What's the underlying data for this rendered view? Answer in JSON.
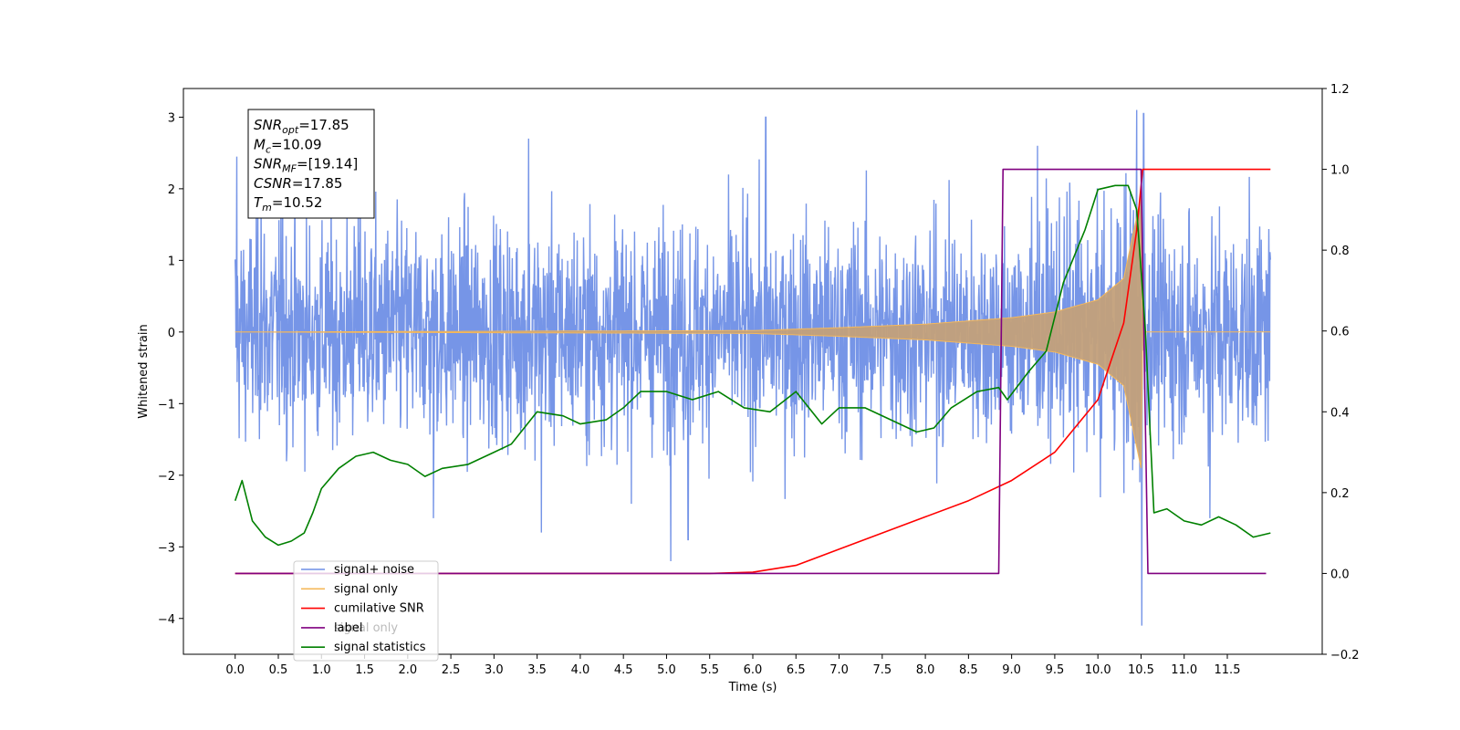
{
  "colors": {
    "signal_noise": "#6f8fe6",
    "signal_only": "#f5b85a",
    "signal_band": "#c3a07a",
    "cumulative_snr": "#ff0000",
    "label": "#800080",
    "signal_statistics": "#008000"
  },
  "chart_data": {
    "type": "line",
    "xlabel": "Time (s)",
    "ylabel": "Whitened strain",
    "xlim": [
      -0.6,
      12.6
    ],
    "ylim_left": [
      -4.5,
      3.4
    ],
    "ylim_right": [
      -0.2,
      1.2
    ],
    "x_ticks": [
      "0.0",
      "0.5",
      "1.0",
      "1.5",
      "2.0",
      "2.5",
      "3.0",
      "3.5",
      "4.0",
      "4.5",
      "5.0",
      "5.5",
      "6.0",
      "6.5",
      "7.0",
      "7.5",
      "8.0",
      "8.5",
      "9.0",
      "9.5",
      "10.0",
      "10.5",
      "11.0",
      "11.5"
    ],
    "y_ticks_left": [
      "3",
      "2",
      "1",
      "0",
      "−1",
      "−2",
      "−3",
      "−4"
    ],
    "y_ticks_right": [
      "1.2",
      "1.0",
      "0.8",
      "0.6",
      "0.4",
      "0.2",
      "0.0",
      "−0.2"
    ],
    "legend": {
      "position": "lower left",
      "entries": [
        "signal+ noise",
        "signal only",
        "cumilative SNR",
        "label",
        "signal statistics"
      ],
      "ghost_text": "signal only"
    },
    "info_box": {
      "lines": [
        {
          "name": "SNR",
          "sub": "opt",
          "value": "=17.85"
        },
        {
          "name": "M",
          "sub": "c",
          "value": "=10.09"
        },
        {
          "name": "SNR",
          "sub": "MF",
          "value": "=[19.14]"
        },
        {
          "name": "CSNR",
          "sub": "",
          "value": "=17.85"
        },
        {
          "name": "T",
          "sub": "m",
          "value": "=10.52"
        }
      ]
    },
    "series": [
      {
        "name": "signal+ noise",
        "axis": "left",
        "band": [
          0.0,
          12.0
        ],
        "typical_range": [
          -1.6,
          1.6
        ],
        "spikes": [
          {
            "x": 0.02,
            "y": 2.45
          },
          {
            "x": 0.3,
            "y": 2.0
          },
          {
            "x": 0.55,
            "y": 2.1
          },
          {
            "x": 1.45,
            "y": 2.5
          },
          {
            "x": 3.4,
            "y": 2.7
          },
          {
            "x": 5.05,
            "y": -3.2
          },
          {
            "x": 5.25,
            "y": -2.9
          },
          {
            "x": 6.15,
            "y": 3.0
          },
          {
            "x": 9.3,
            "y": 2.6
          },
          {
            "x": 10.45,
            "y": 3.1
          },
          {
            "x": 10.51,
            "y": -4.1
          },
          {
            "x": 10.53,
            "y": 3.05
          },
          {
            "x": 11.3,
            "y": -2.6
          },
          {
            "x": 3.55,
            "y": -2.8
          },
          {
            "x": 2.3,
            "y": -2.6
          }
        ]
      },
      {
        "name": "signal only",
        "axis": "left",
        "envelope": [
          {
            "x": 0.0,
            "y": 0.0
          },
          {
            "x": 6.0,
            "y": 0.02
          },
          {
            "x": 7.0,
            "y": 0.06
          },
          {
            "x": 8.0,
            "y": 0.11
          },
          {
            "x": 9.0,
            "y": 0.2
          },
          {
            "x": 9.5,
            "y": 0.28
          },
          {
            "x": 10.0,
            "y": 0.45
          },
          {
            "x": 10.3,
            "y": 0.75
          },
          {
            "x": 10.5,
            "y": 1.9
          },
          {
            "x": 10.52,
            "y": 0.0
          },
          {
            "x": 12.0,
            "y": 0.0
          }
        ]
      },
      {
        "name": "cumilative SNR",
        "axis": "right",
        "points": [
          {
            "x": 0.0,
            "y": 0.0
          },
          {
            "x": 5.5,
            "y": 0.0
          },
          {
            "x": 6.0,
            "y": 0.003
          },
          {
            "x": 6.5,
            "y": 0.02
          },
          {
            "x": 7.0,
            "y": 0.06
          },
          {
            "x": 7.5,
            "y": 0.1
          },
          {
            "x": 8.0,
            "y": 0.14
          },
          {
            "x": 8.5,
            "y": 0.18
          },
          {
            "x": 9.0,
            "y": 0.23
          },
          {
            "x": 9.5,
            "y": 0.3
          },
          {
            "x": 10.0,
            "y": 0.43
          },
          {
            "x": 10.3,
            "y": 0.62
          },
          {
            "x": 10.45,
            "y": 0.85
          },
          {
            "x": 10.52,
            "y": 1.0
          },
          {
            "x": 12.0,
            "y": 1.0
          }
        ]
      },
      {
        "name": "label",
        "axis": "right",
        "points": [
          {
            "x": 0.0,
            "y": 0.0
          },
          {
            "x": 8.85,
            "y": 0.0
          },
          {
            "x": 8.9,
            "y": 1.0
          },
          {
            "x": 10.5,
            "y": 1.0
          },
          {
            "x": 10.58,
            "y": 0.0
          },
          {
            "x": 11.95,
            "y": 0.0
          }
        ]
      },
      {
        "name": "signal statistics",
        "axis": "right",
        "points": [
          {
            "x": 0.0,
            "y": 0.18
          },
          {
            "x": 0.08,
            "y": 0.23
          },
          {
            "x": 0.2,
            "y": 0.13
          },
          {
            "x": 0.35,
            "y": 0.09
          },
          {
            "x": 0.5,
            "y": 0.07
          },
          {
            "x": 0.65,
            "y": 0.08
          },
          {
            "x": 0.8,
            "y": 0.1
          },
          {
            "x": 0.9,
            "y": 0.15
          },
          {
            "x": 1.0,
            "y": 0.21
          },
          {
            "x": 1.2,
            "y": 0.26
          },
          {
            "x": 1.4,
            "y": 0.29
          },
          {
            "x": 1.6,
            "y": 0.3
          },
          {
            "x": 1.8,
            "y": 0.28
          },
          {
            "x": 2.0,
            "y": 0.27
          },
          {
            "x": 2.2,
            "y": 0.24
          },
          {
            "x": 2.4,
            "y": 0.26
          },
          {
            "x": 2.7,
            "y": 0.27
          },
          {
            "x": 3.0,
            "y": 0.3
          },
          {
            "x": 3.2,
            "y": 0.32
          },
          {
            "x": 3.5,
            "y": 0.4
          },
          {
            "x": 3.8,
            "y": 0.39
          },
          {
            "x": 4.0,
            "y": 0.37
          },
          {
            "x": 4.3,
            "y": 0.38
          },
          {
            "x": 4.5,
            "y": 0.41
          },
          {
            "x": 4.7,
            "y": 0.45
          },
          {
            "x": 5.0,
            "y": 0.45
          },
          {
            "x": 5.3,
            "y": 0.43
          },
          {
            "x": 5.6,
            "y": 0.45
          },
          {
            "x": 5.9,
            "y": 0.41
          },
          {
            "x": 6.2,
            "y": 0.4
          },
          {
            "x": 6.5,
            "y": 0.45
          },
          {
            "x": 6.8,
            "y": 0.37
          },
          {
            "x": 7.0,
            "y": 0.41
          },
          {
            "x": 7.3,
            "y": 0.41
          },
          {
            "x": 7.6,
            "y": 0.38
          },
          {
            "x": 7.9,
            "y": 0.35
          },
          {
            "x": 8.1,
            "y": 0.36
          },
          {
            "x": 8.3,
            "y": 0.41
          },
          {
            "x": 8.6,
            "y": 0.45
          },
          {
            "x": 8.85,
            "y": 0.46
          },
          {
            "x": 8.95,
            "y": 0.43
          },
          {
            "x": 9.2,
            "y": 0.5
          },
          {
            "x": 9.4,
            "y": 0.55
          },
          {
            "x": 9.6,
            "y": 0.72
          },
          {
            "x": 9.85,
            "y": 0.85
          },
          {
            "x": 10.0,
            "y": 0.95
          },
          {
            "x": 10.2,
            "y": 0.96
          },
          {
            "x": 10.35,
            "y": 0.96
          },
          {
            "x": 10.45,
            "y": 0.9
          },
          {
            "x": 10.55,
            "y": 0.6
          },
          {
            "x": 10.65,
            "y": 0.15
          },
          {
            "x": 10.8,
            "y": 0.16
          },
          {
            "x": 11.0,
            "y": 0.13
          },
          {
            "x": 11.2,
            "y": 0.12
          },
          {
            "x": 11.4,
            "y": 0.14
          },
          {
            "x": 11.6,
            "y": 0.12
          },
          {
            "x": 11.8,
            "y": 0.09
          },
          {
            "x": 12.0,
            "y": 0.1
          }
        ]
      }
    ]
  }
}
